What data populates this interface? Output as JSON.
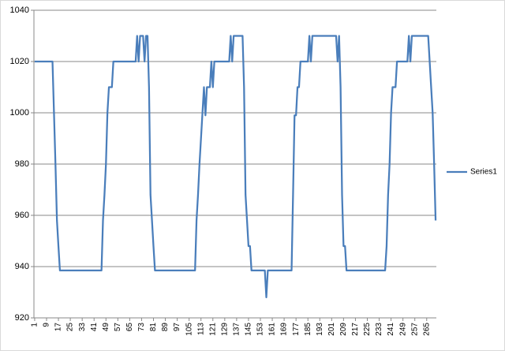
{
  "chart_data": {
    "type": "line",
    "categories": [
      "1",
      null,
      null,
      null,
      null,
      null,
      null,
      null,
      "9",
      null,
      null,
      null,
      null,
      null,
      null,
      null,
      "17",
      null,
      null,
      null,
      null,
      null,
      null,
      null,
      "25",
      null,
      null,
      null,
      null,
      null,
      null,
      null,
      "33",
      null,
      null,
      null,
      null,
      null,
      null,
      null,
      "41",
      null,
      null,
      null,
      null,
      null,
      null,
      null,
      "49",
      null,
      null,
      null,
      null,
      null,
      null,
      null,
      "57",
      null,
      null,
      null,
      null,
      null,
      null,
      null,
      "65",
      null,
      null,
      null,
      null,
      null,
      null,
      null,
      "73",
      null,
      null,
      null,
      null,
      null,
      null,
      null,
      "81",
      null,
      null,
      null,
      null,
      null,
      null,
      null,
      "89",
      null,
      null,
      null,
      null,
      null,
      null,
      null,
      "97",
      null,
      null,
      null,
      null,
      null,
      null,
      null,
      "105",
      null,
      null,
      null,
      null,
      null,
      null,
      null,
      "113",
      null,
      null,
      null,
      null,
      null,
      null,
      null,
      "121",
      null,
      null,
      null,
      null,
      null,
      null,
      null,
      "129",
      null,
      null,
      null,
      null,
      null,
      null,
      null,
      "137",
      null,
      null,
      null,
      null,
      null,
      null,
      null,
      "145",
      null,
      null,
      null,
      null,
      null,
      null,
      null,
      "153",
      null,
      null,
      null,
      null,
      null,
      null,
      null,
      "161",
      null,
      null,
      null,
      null,
      null,
      null,
      null,
      "169",
      null,
      null,
      null,
      null,
      null,
      null,
      null,
      "177",
      null,
      null,
      null,
      null,
      null,
      null,
      null,
      "185",
      null,
      null,
      null,
      null,
      null,
      null,
      null,
      "193",
      null,
      null,
      null,
      null,
      null,
      null,
      null,
      "201",
      null,
      null,
      null,
      null,
      null,
      null,
      null,
      "209",
      null,
      null,
      null,
      null,
      null,
      null,
      null,
      "217",
      null,
      null,
      null,
      null,
      null,
      null,
      null,
      "225",
      null,
      null,
      null,
      null,
      null,
      null,
      null,
      "233",
      null,
      null,
      null,
      null,
      null,
      null,
      null,
      "241",
      null,
      null,
      null,
      null,
      null,
      null,
      null,
      "249",
      null,
      null,
      null,
      null,
      null,
      null,
      null,
      "257",
      null,
      null,
      null,
      null,
      null,
      null,
      null,
      "265",
      null,
      null,
      null,
      null,
      null,
      null
    ],
    "series": [
      {
        "name": "Series1",
        "color": "#4a7ebb",
        "values": [
          1020,
          1020,
          1020,
          1020,
          1020,
          1020,
          1020,
          1020,
          1020,
          1020,
          1020,
          1020,
          1020,
          1000,
          980,
          958,
          948,
          938.5,
          938.5,
          938.5,
          938.5,
          938.5,
          938.5,
          938.5,
          938.5,
          938.5,
          938.5,
          938.5,
          938.5,
          938.5,
          938.5,
          938.5,
          938.5,
          938.5,
          938.5,
          938.5,
          938.5,
          938.5,
          938.5,
          938.5,
          938.5,
          938.5,
          938.5,
          938.5,
          938.5,
          938.5,
          958,
          968,
          980,
          1000,
          1010,
          1010,
          1010,
          1020,
          1020,
          1020,
          1020,
          1020,
          1020,
          1020,
          1020,
          1020,
          1020,
          1020,
          1020,
          1020,
          1020,
          1020,
          1020,
          1030,
          1020,
          1030,
          1030,
          1030,
          1020,
          1030,
          1030,
          1010,
          968,
          958,
          948,
          938.5,
          938.5,
          938.5,
          938.5,
          938.5,
          938.5,
          938.5,
          938.5,
          938.5,
          938.5,
          938.5,
          938.5,
          938.5,
          938.5,
          938.5,
          938.5,
          938.5,
          938.5,
          938.5,
          938.5,
          938.5,
          938.5,
          938.5,
          938.5,
          938.5,
          938.5,
          938.5,
          938.5,
          958,
          968,
          980,
          990,
          1000,
          1010,
          999,
          1010,
          1010,
          1010,
          1020,
          1010,
          1020,
          1020,
          1020,
          1020,
          1020,
          1020,
          1020,
          1020,
          1020,
          1020,
          1020,
          1030,
          1020,
          1030,
          1030,
          1030,
          1030,
          1030,
          1030,
          1030,
          1010,
          968,
          958,
          948,
          948,
          938.5,
          938.5,
          938.5,
          938.5,
          938.5,
          938.5,
          938.5,
          938.5,
          938.5,
          938.5,
          928,
          938.5,
          938.5,
          938.5,
          938.5,
          938.5,
          938.5,
          938.5,
          938.5,
          938.5,
          938.5,
          938.5,
          938.5,
          938.5,
          938.5,
          938.5,
          938.5,
          938.5,
          968,
          999,
          999,
          1010,
          1010,
          1020,
          1020,
          1020,
          1020,
          1020,
          1020,
          1030,
          1020,
          1030,
          1030,
          1030,
          1030,
          1030,
          1030,
          1030,
          1030,
          1030,
          1030,
          1030,
          1030,
          1030,
          1030,
          1030,
          1030,
          1030,
          1020,
          1030,
          1010,
          968,
          948,
          948,
          938.5,
          938.5,
          938.5,
          938.5,
          938.5,
          938.5,
          938.5,
          938.5,
          938.5,
          938.5,
          938.5,
          938.5,
          938.5,
          938.5,
          938.5,
          938.5,
          938.5,
          938.5,
          938.5,
          938.5,
          938.5,
          938.5,
          938.5,
          938.5,
          938.5,
          938.5,
          938.5,
          948,
          968,
          980,
          1000,
          1010,
          1010,
          1010,
          1020,
          1020,
          1020,
          1020,
          1020,
          1020,
          1020,
          1020,
          1030,
          1020,
          1030,
          1030,
          1030,
          1030,
          1030,
          1030,
          1030,
          1030,
          1030,
          1030,
          1030,
          1030,
          1020,
          1010,
          1000,
          980,
          958
        ]
      }
    ],
    "ylim": [
      920,
      1040
    ],
    "yticks": [
      920,
      940,
      960,
      980,
      1000,
      1020,
      1040
    ],
    "grid": true,
    "legend": "right"
  }
}
